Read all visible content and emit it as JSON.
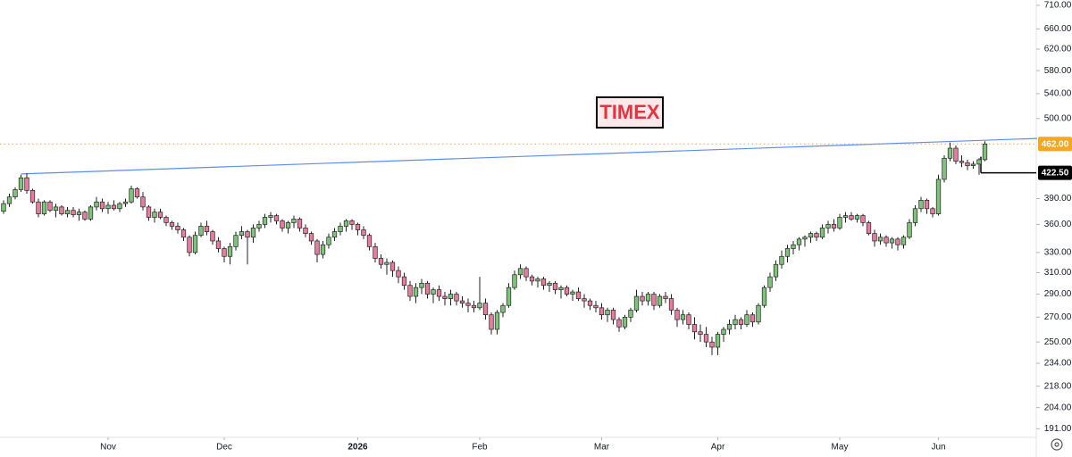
{
  "chart_data": {
    "type": "candlestick",
    "title": "TIMEX",
    "log_scale": true,
    "ylim": [
      186,
      722
    ],
    "yticks": [
      {
        "value": 710,
        "label": "710.00"
      },
      {
        "value": 660,
        "label": "660.00"
      },
      {
        "value": 620,
        "label": "620.00"
      },
      {
        "value": 580,
        "label": "580.00"
      },
      {
        "value": 540,
        "label": "540.00"
      },
      {
        "value": 500,
        "label": "500.00"
      },
      {
        "value": 390,
        "label": "390.00"
      },
      {
        "value": 360,
        "label": "360.00"
      },
      {
        "value": 330,
        "label": "330.00"
      },
      {
        "value": 310,
        "label": "310.00"
      },
      {
        "value": 290,
        "label": "290.00"
      },
      {
        "value": 270,
        "label": "270.00"
      },
      {
        "value": 250,
        "label": "250.00"
      },
      {
        "value": 234,
        "label": "234.00"
      },
      {
        "value": 218,
        "label": "218.00"
      },
      {
        "value": 204,
        "label": "204.00"
      },
      {
        "value": 191,
        "label": "191.00"
      }
    ],
    "xticks": [
      {
        "value": 18,
        "label": "Nov"
      },
      {
        "value": 38,
        "label": "Dec"
      },
      {
        "value": 61,
        "label": "2026"
      },
      {
        "value": 82,
        "label": "Feb"
      },
      {
        "value": 103,
        "label": "Mar"
      },
      {
        "value": 123,
        "label": "Apr"
      },
      {
        "value": 144,
        "label": "May"
      },
      {
        "value": 161,
        "label": "Jun"
      }
    ],
    "up_color": "#7fc27a",
    "down_color": "#e77c9f",
    "levels": [
      {
        "value": 462,
        "label": "462.00",
        "color": "#f5a623"
      },
      {
        "value": 422.5,
        "label": "422.50",
        "color": "#000000",
        "start_index": 168
      }
    ],
    "trendline": {
      "start_index": 3,
      "start_value": 421,
      "end_index": 178,
      "end_value": 470,
      "color": "#5b8def"
    },
    "ohlc": [
      [
        375,
        388,
        372,
        384
      ],
      [
        384,
        396,
        380,
        392
      ],
      [
        392,
        404,
        389,
        401
      ],
      [
        401,
        420,
        398,
        416
      ],
      [
        416,
        422,
        396,
        400
      ],
      [
        400,
        402,
        384,
        386
      ],
      [
        386,
        390,
        368,
        372
      ],
      [
        372,
        388,
        370,
        386
      ],
      [
        386,
        388,
        374,
        376
      ],
      [
        376,
        384,
        368,
        380
      ],
      [
        380,
        382,
        370,
        372
      ],
      [
        372,
        380,
        368,
        376
      ],
      [
        376,
        380,
        368,
        371
      ],
      [
        371,
        378,
        364,
        374
      ],
      [
        374,
        376,
        364,
        366
      ],
      [
        366,
        382,
        364,
        380
      ],
      [
        380,
        392,
        376,
        386
      ],
      [
        386,
        390,
        374,
        378
      ],
      [
        378,
        386,
        372,
        382
      ],
      [
        382,
        388,
        376,
        378
      ],
      [
        378,
        386,
        374,
        384
      ],
      [
        384,
        390,
        380,
        386
      ],
      [
        386,
        406,
        384,
        402
      ],
      [
        402,
        404,
        390,
        392
      ],
      [
        392,
        398,
        376,
        380
      ],
      [
        380,
        382,
        364,
        368
      ],
      [
        368,
        378,
        362,
        374
      ],
      [
        374,
        378,
        366,
        368
      ],
      [
        368,
        370,
        358,
        362
      ],
      [
        362,
        364,
        354,
        358
      ],
      [
        358,
        362,
        350,
        354
      ],
      [
        354,
        356,
        342,
        346
      ],
      [
        346,
        348,
        326,
        330
      ],
      [
        330,
        352,
        328,
        348
      ],
      [
        348,
        362,
        346,
        358
      ],
      [
        358,
        364,
        348,
        352
      ],
      [
        352,
        354,
        338,
        342
      ],
      [
        342,
        346,
        330,
        334
      ],
      [
        334,
        336,
        320,
        326
      ],
      [
        326,
        340,
        318,
        336
      ],
      [
        336,
        352,
        332,
        348
      ],
      [
        348,
        358,
        344,
        352
      ],
      [
        352,
        354,
        318,
        346
      ],
      [
        346,
        360,
        340,
        356
      ],
      [
        356,
        364,
        352,
        360
      ],
      [
        360,
        372,
        356,
        368
      ],
      [
        368,
        374,
        362,
        370
      ],
      [
        370,
        372,
        360,
        364
      ],
      [
        364,
        366,
        352,
        356
      ],
      [
        356,
        364,
        350,
        362
      ],
      [
        362,
        370,
        356,
        366
      ],
      [
        366,
        368,
        352,
        356
      ],
      [
        356,
        360,
        346,
        350
      ],
      [
        350,
        352,
        338,
        342
      ],
      [
        342,
        344,
        320,
        328
      ],
      [
        328,
        342,
        324,
        338
      ],
      [
        338,
        350,
        334,
        346
      ],
      [
        346,
        356,
        342,
        352
      ],
      [
        352,
        362,
        348,
        358
      ],
      [
        358,
        366,
        352,
        364
      ],
      [
        364,
        366,
        354,
        360
      ],
      [
        360,
        362,
        348,
        354
      ],
      [
        354,
        358,
        344,
        348
      ],
      [
        348,
        350,
        332,
        336
      ],
      [
        336,
        340,
        320,
        324
      ],
      [
        324,
        328,
        314,
        318
      ],
      [
        318,
        324,
        308,
        320
      ],
      [
        320,
        322,
        306,
        312
      ],
      [
        312,
        316,
        300,
        306
      ],
      [
        306,
        310,
        294,
        298
      ],
      [
        298,
        302,
        284,
        288
      ],
      [
        288,
        300,
        282,
        296
      ],
      [
        296,
        304,
        290,
        300
      ],
      [
        300,
        302,
        286,
        290
      ],
      [
        290,
        296,
        282,
        294
      ],
      [
        294,
        298,
        284,
        288
      ],
      [
        288,
        292,
        280,
        286
      ],
      [
        286,
        294,
        280,
        290
      ],
      [
        290,
        292,
        280,
        284
      ],
      [
        284,
        288,
        278,
        282
      ],
      [
        282,
        286,
        274,
        280
      ],
      [
        280,
        284,
        274,
        278
      ],
      [
        278,
        306,
        276,
        282
      ],
      [
        282,
        286,
        268,
        272
      ],
      [
        272,
        274,
        256,
        260
      ],
      [
        260,
        276,
        256,
        274
      ],
      [
        274,
        282,
        270,
        280
      ],
      [
        280,
        300,
        278,
        296
      ],
      [
        296,
        312,
        294,
        308
      ],
      [
        308,
        318,
        304,
        314
      ],
      [
        314,
        316,
        302,
        306
      ],
      [
        306,
        308,
        298,
        302
      ],
      [
        302,
        306,
        296,
        304
      ],
      [
        304,
        306,
        294,
        298
      ],
      [
        298,
        302,
        292,
        300
      ],
      [
        300,
        302,
        290,
        294
      ],
      [
        294,
        298,
        286,
        296
      ],
      [
        296,
        298,
        288,
        290
      ],
      [
        290,
        294,
        284,
        292
      ],
      [
        292,
        296,
        284,
        286
      ],
      [
        286,
        290,
        278,
        284
      ],
      [
        284,
        286,
        276,
        280
      ],
      [
        280,
        284,
        274,
        278
      ],
      [
        278,
        282,
        268,
        272
      ],
      [
        272,
        278,
        266,
        276
      ],
      [
        276,
        278,
        264,
        268
      ],
      [
        268,
        270,
        258,
        262
      ],
      [
        262,
        272,
        260,
        270
      ],
      [
        270,
        278,
        266,
        276
      ],
      [
        276,
        294,
        274,
        288
      ],
      [
        288,
        292,
        280,
        284
      ],
      [
        284,
        292,
        280,
        290
      ],
      [
        290,
        292,
        276,
        280
      ],
      [
        280,
        290,
        278,
        288
      ],
      [
        288,
        292,
        282,
        286
      ],
      [
        286,
        290,
        272,
        276
      ],
      [
        276,
        278,
        262,
        268
      ],
      [
        268,
        276,
        264,
        272
      ],
      [
        272,
        274,
        260,
        264
      ],
      [
        264,
        270,
        252,
        258
      ],
      [
        258,
        264,
        250,
        256
      ],
      [
        256,
        262,
        246,
        250
      ],
      [
        250,
        254,
        240,
        246
      ],
      [
        246,
        258,
        240,
        256
      ],
      [
        256,
        262,
        250,
        260
      ],
      [
        260,
        268,
        256,
        264
      ],
      [
        264,
        272,
        260,
        268
      ],
      [
        268,
        270,
        260,
        264
      ],
      [
        264,
        276,
        262,
        272
      ],
      [
        272,
        274,
        262,
        266
      ],
      [
        266,
        282,
        264,
        280
      ],
      [
        280,
        298,
        278,
        296
      ],
      [
        296,
        310,
        292,
        306
      ],
      [
        306,
        322,
        302,
        318
      ],
      [
        318,
        332,
        314,
        326
      ],
      [
        326,
        338,
        320,
        334
      ],
      [
        334,
        342,
        328,
        338
      ],
      [
        338,
        346,
        332,
        344
      ],
      [
        344,
        348,
        336,
        346
      ],
      [
        346,
        352,
        340,
        350
      ],
      [
        350,
        352,
        342,
        346
      ],
      [
        346,
        360,
        344,
        356
      ],
      [
        356,
        364,
        350,
        360
      ],
      [
        360,
        366,
        352,
        356
      ],
      [
        356,
        372,
        354,
        368
      ],
      [
        368,
        374,
        362,
        370
      ],
      [
        370,
        374,
        364,
        366
      ],
      [
        366,
        372,
        362,
        370
      ],
      [
        370,
        372,
        358,
        362
      ],
      [
        362,
        364,
        348,
        350
      ],
      [
        350,
        354,
        336,
        342
      ],
      [
        342,
        350,
        338,
        346
      ],
      [
        346,
        348,
        336,
        340
      ],
      [
        340,
        346,
        334,
        344
      ],
      [
        344,
        346,
        332,
        338
      ],
      [
        338,
        348,
        334,
        346
      ],
      [
        346,
        366,
        344,
        362
      ],
      [
        362,
        382,
        358,
        378
      ],
      [
        378,
        392,
        374,
        388
      ],
      [
        388,
        390,
        372,
        378
      ],
      [
        378,
        380,
        368,
        372
      ],
      [
        372,
        420,
        370,
        414
      ],
      [
        414,
        446,
        410,
        442
      ],
      [
        442,
        464,
        438,
        456
      ],
      [
        456,
        460,
        434,
        438
      ],
      [
        438,
        446,
        430,
        436
      ],
      [
        436,
        440,
        426,
        432
      ],
      [
        432,
        438,
        428,
        434
      ],
      [
        434,
        442,
        420,
        440
      ],
      [
        440,
        466,
        438,
        462
      ]
    ]
  }
}
